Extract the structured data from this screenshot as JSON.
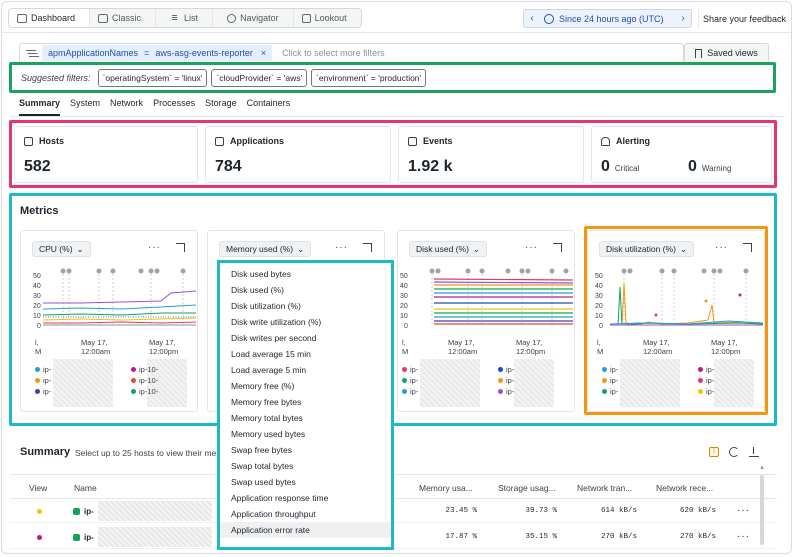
{
  "top_tabs": [
    {
      "label": "Dashboard",
      "icon": "dashboard-icon",
      "active": true
    },
    {
      "label": "Classic",
      "icon": "table-icon",
      "active": false
    },
    {
      "label": "List",
      "icon": "list-icon",
      "active": false
    },
    {
      "label": "Navigator",
      "icon": "navigator-icon",
      "active": false
    },
    {
      "label": "Lookout",
      "icon": "lookout-icon",
      "active": false
    }
  ],
  "time_picker": {
    "label": "Since 24 hours ago (UTC)",
    "prev": "‹",
    "next": "›"
  },
  "share_label": "Share your feedback",
  "filter": {
    "key": "apmApplicationNames",
    "op": "=",
    "value": "aws-asg-events-reporter",
    "remove": "×",
    "placeholder": "Click to select more filters"
  },
  "saved_views_label": "Saved views",
  "suggested": {
    "label": "Suggested filters:",
    "chips": [
      "`operatingSystem` = 'linux'",
      "`cloudProvider` = 'aws'",
      "`environment` = 'production'"
    ]
  },
  "entity_tabs": [
    "Summary",
    "System",
    "Network",
    "Processes",
    "Storage",
    "Containers"
  ],
  "cards": {
    "hosts": {
      "title": "Hosts",
      "value": "582"
    },
    "applications": {
      "title": "Applications",
      "value": "784"
    },
    "events": {
      "title": "Events",
      "value": "1.92 k"
    },
    "alerting": {
      "title": "Alerting",
      "critical_value": "0",
      "critical_label": "Critical",
      "warning_value": "0",
      "warning_label": "Warning"
    }
  },
  "metrics": {
    "title": "Metrics",
    "charts": [
      {
        "selector": "CPU (%)",
        "more": "···",
        "x_ticks": [
          "l,\nM",
          "May 17,\n12:00am",
          "May 17,\n12:00pm"
        ],
        "legend": [
          "ip-",
          "ip-",
          "ip-",
          "ip-10-",
          "ip-10-",
          "ip-10-"
        ]
      },
      {
        "selector": "Memory used (%)",
        "more": "···"
      },
      {
        "selector": "Disk used (%)",
        "more": "···",
        "x_ticks": [
          "l,\nM",
          "May 17,\n12:00am",
          "May 17,\n12:00pm"
        ],
        "legend": [
          "ip-",
          "ip-",
          "ip-",
          "ip-",
          "ip-",
          "ip-"
        ]
      },
      {
        "selector": "Disk utilization (%)",
        "more": "···",
        "x_ticks": [
          "l,\nM",
          "May 17,\n12:00am",
          "May 17,\n12:00pm"
        ],
        "legend": [
          "ip-",
          "ip-",
          "ip-",
          "ip-",
          "ip-",
          "ip-"
        ]
      }
    ],
    "y_ticks": [
      "50",
      "40",
      "30",
      "20",
      "10",
      "0"
    ]
  },
  "dropdown_options": [
    "Disk used bytes",
    "Disk used (%)",
    "Disk utilization (%)",
    "Disk write utilization (%)",
    "Disk writes per second",
    "Load average 15 min",
    "Load average 5 min",
    "Memory free (%)",
    "Memory free bytes",
    "Memory total bytes",
    "Memory used bytes",
    "Swap free bytes",
    "Swap total bytes",
    "Swap used bytes",
    "Application response time",
    "Application throughput",
    "Application error rate"
  ],
  "summary": {
    "title": "Summary",
    "subtitle": "Select up to 25 hosts to view their me",
    "warn": "!",
    "columns": [
      "View",
      "Name",
      "Memory usa...",
      "Storage usag...",
      "Network tran...",
      "Network rece..."
    ],
    "rows": [
      {
        "name": "ip-",
        "memory": "23.45 %",
        "storage": "39.73 %",
        "tx": "614 kB/s",
        "rx": "620 kB/s",
        "dot": "#f2c500"
      },
      {
        "name": "ip-",
        "memory": "17.87 %",
        "storage": "35.15 %",
        "tx": "270 kB/s",
        "rx": "270 kB/s",
        "dot": "#c2178f"
      }
    ],
    "row_more": "···"
  },
  "colors": {
    "suggested_outline": "#1aa35c",
    "cards_outline": "#e8356b",
    "metrics_outline": "#1cbac8",
    "disk_util_outline": "#f2970b",
    "accent": "#1d4fb8"
  }
}
